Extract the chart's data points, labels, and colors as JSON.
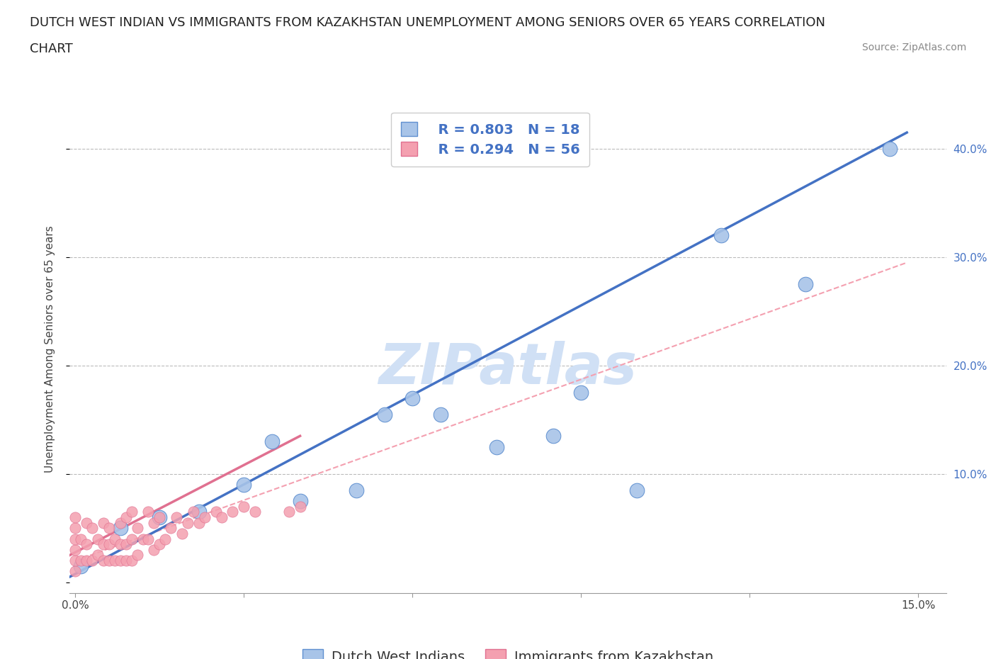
{
  "title_line1": "DUTCH WEST INDIAN VS IMMIGRANTS FROM KAZAKHSTAN UNEMPLOYMENT AMONG SENIORS OVER 65 YEARS CORRELATION",
  "title_line2": "CHART",
  "source_text": "Source: ZipAtlas.com",
  "ylabel": "Unemployment Among Seniors over 65 years",
  "xlim": [
    -0.001,
    0.155
  ],
  "ylim": [
    -0.01,
    0.44
  ],
  "x_ticks": [
    0.0,
    0.03,
    0.06,
    0.09,
    0.12,
    0.15
  ],
  "x_tick_labels_show": [
    "0.0%",
    "",
    "",
    "",
    "",
    "15.0%"
  ],
  "y_ticks": [
    0.0,
    0.1,
    0.2,
    0.3,
    0.4
  ],
  "y_right_labels": [
    "",
    "10.0%",
    "20.0%",
    "30.0%",
    "40.0%"
  ],
  "blue_color": "#a8c4e8",
  "pink_color": "#f4a0b0",
  "blue_edge_color": "#6090d0",
  "pink_edge_color": "#e07090",
  "blue_line_color": "#4472c4",
  "pink_line_color": "#e07090",
  "dashed_line_color": "#f4a0b0",
  "watermark_color": "#d0e0f5",
  "legend_R_blue": "R = 0.803",
  "legend_N_blue": "N = 18",
  "legend_R_pink": "R = 0.294",
  "legend_N_pink": "N = 56",
  "legend_label_blue": "Dutch West Indians",
  "legend_label_pink": "Immigrants from Kazakhstan",
  "blue_scatter_x": [
    0.001,
    0.008,
    0.015,
    0.022,
    0.03,
    0.035,
    0.04,
    0.05,
    0.055,
    0.06,
    0.065,
    0.075,
    0.085,
    0.09,
    0.1,
    0.115,
    0.13,
    0.145
  ],
  "blue_scatter_y": [
    0.015,
    0.05,
    0.06,
    0.065,
    0.09,
    0.13,
    0.075,
    0.085,
    0.155,
    0.17,
    0.155,
    0.125,
    0.135,
    0.175,
    0.085,
    0.32,
    0.275,
    0.4
  ],
  "pink_scatter_x": [
    0.0,
    0.0,
    0.0,
    0.0,
    0.0,
    0.0,
    0.001,
    0.001,
    0.002,
    0.002,
    0.002,
    0.003,
    0.003,
    0.004,
    0.004,
    0.005,
    0.005,
    0.005,
    0.006,
    0.006,
    0.006,
    0.007,
    0.007,
    0.008,
    0.008,
    0.008,
    0.009,
    0.009,
    0.009,
    0.01,
    0.01,
    0.01,
    0.011,
    0.011,
    0.012,
    0.013,
    0.013,
    0.014,
    0.014,
    0.015,
    0.015,
    0.016,
    0.017,
    0.018,
    0.019,
    0.02,
    0.021,
    0.022,
    0.023,
    0.025,
    0.026,
    0.028,
    0.03,
    0.032,
    0.038,
    0.04
  ],
  "pink_scatter_y": [
    0.01,
    0.02,
    0.03,
    0.04,
    0.05,
    0.06,
    0.02,
    0.04,
    0.02,
    0.035,
    0.055,
    0.02,
    0.05,
    0.025,
    0.04,
    0.02,
    0.035,
    0.055,
    0.02,
    0.035,
    0.05,
    0.02,
    0.04,
    0.02,
    0.035,
    0.055,
    0.02,
    0.035,
    0.06,
    0.02,
    0.04,
    0.065,
    0.025,
    0.05,
    0.04,
    0.04,
    0.065,
    0.03,
    0.055,
    0.035,
    0.06,
    0.04,
    0.05,
    0.06,
    0.045,
    0.055,
    0.065,
    0.055,
    0.06,
    0.065,
    0.06,
    0.065,
    0.07,
    0.065,
    0.065,
    0.07
  ],
  "blue_trend_x": [
    -0.001,
    0.148
  ],
  "blue_trend_y": [
    0.005,
    0.415
  ],
  "pink_trend_x": [
    -0.001,
    0.04
  ],
  "pink_trend_y": [
    0.025,
    0.135
  ],
  "dashed_line_x": [
    0.0,
    0.148
  ],
  "dashed_line_y": [
    0.02,
    0.295
  ],
  "title_fontsize": 13,
  "axis_label_fontsize": 11,
  "tick_fontsize": 11,
  "legend_fontsize": 14,
  "source_fontsize": 10
}
